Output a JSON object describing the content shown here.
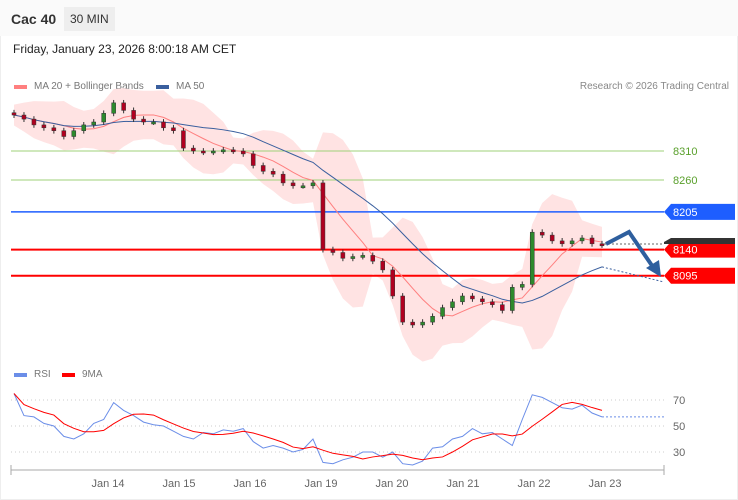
{
  "header": {
    "title": "Cac 40",
    "timeframe": "30 MIN",
    "datetime": "Friday, January 23, 2026 8:00:18 AM CET"
  },
  "legend": {
    "ma20": "MA 20 + Bollinger Bands",
    "ma50": "MA 50",
    "credit": "Research © 2026 Trading Central"
  },
  "rsi_legend": {
    "rsi": "RSI",
    "ma9": "9MA"
  },
  "colors": {
    "ma20": "#ff7f7f",
    "ma50": "#3a5f9e",
    "band": "#ffe3e3",
    "support": "#ff0000",
    "pivot": "#1e5eff",
    "resist": "#9fd27a",
    "rsi": "#6b8ee8",
    "rsi_ma": "#ff0000",
    "arrow": "#2e5f9e"
  },
  "levels": [
    {
      "value": 8310,
      "label": "8310",
      "kind": "resistance-thin"
    },
    {
      "value": 8260,
      "label": "8260",
      "kind": "resistance-thin"
    },
    {
      "value": 8205,
      "label": "8205",
      "kind": "pivot"
    },
    {
      "value": 8140,
      "label": "8140",
      "kind": "support"
    },
    {
      "value": 8095,
      "label": "8095",
      "kind": "support"
    }
  ],
  "last_price_label": "",
  "chart_data": [
    {
      "type": "candlestick",
      "title": "",
      "x_ticks": [
        "Jan 14",
        "Jan 15",
        "Jan 16",
        "Jan 19",
        "Jan 20",
        "Jan 21",
        "Jan 22",
        "Jan 23"
      ],
      "closes": [
        8372,
        8365,
        8355,
        8350,
        8345,
        8335,
        8345,
        8355,
        8360,
        8375,
        8393,
        8380,
        8365,
        8360,
        8360,
        8350,
        8345,
        8315,
        8310,
        8308,
        8310,
        8312,
        8310,
        8305,
        8285,
        8275,
        8270,
        8255,
        8250,
        8250,
        8255,
        8140,
        8135,
        8125,
        8128,
        8130,
        8120,
        8105,
        8060,
        8015,
        8010,
        8015,
        8025,
        8040,
        8050,
        8060,
        8055,
        8050,
        8045,
        8035,
        8075,
        8080,
        8170,
        8165,
        8155,
        8150,
        8155,
        8160,
        8150,
        8148
      ],
      "forecast": "down toward 8095"
    },
    {
      "type": "line",
      "title": "",
      "y_ticks": [
        70,
        50,
        30
      ],
      "rsi": [
        75,
        58,
        57,
        52,
        50,
        42,
        40,
        44,
        52,
        55,
        68,
        62,
        58,
        53,
        51,
        50,
        46,
        42,
        40,
        45,
        44,
        47,
        46,
        48,
        38,
        33,
        35,
        33,
        30,
        32,
        40,
        22,
        21,
        24,
        26,
        30,
        30,
        26,
        30,
        21,
        20,
        23,
        33,
        34,
        40,
        42,
        48,
        44,
        45,
        40,
        35,
        55,
        74,
        72,
        68,
        64,
        63,
        66,
        60,
        57
      ]
    }
  ]
}
